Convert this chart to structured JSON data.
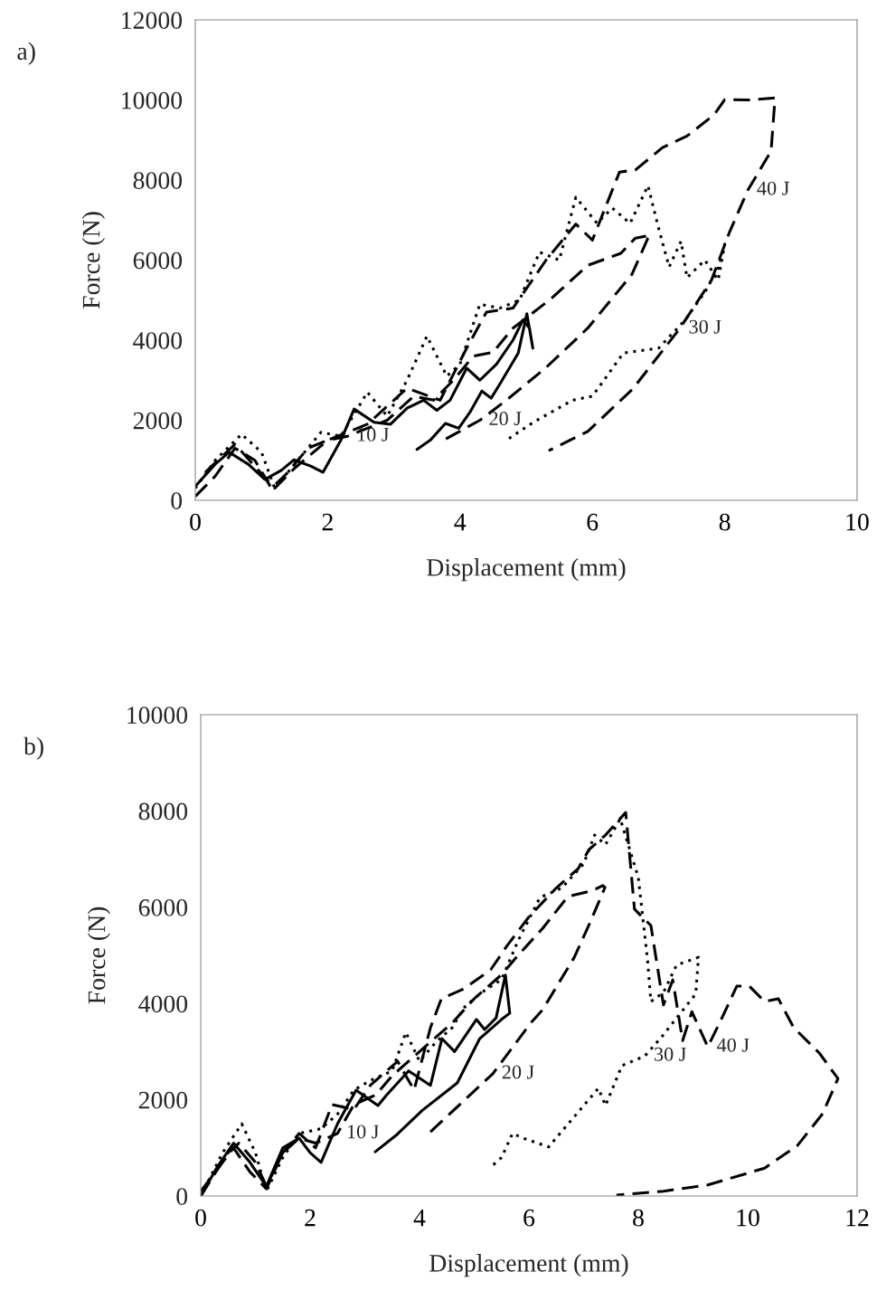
{
  "chart_data": [
    {
      "type": "line",
      "title": "a)",
      "xlabel": "Displacement (mm)",
      "ylabel": "Force (N)",
      "xlim": [
        0,
        10
      ],
      "ylim": [
        0,
        12000
      ],
      "xticks": [
        0,
        2,
        4,
        6,
        8,
        10
      ],
      "yticks": [
        0,
        2000,
        4000,
        6000,
        8000,
        10000,
        12000
      ],
      "grid": false,
      "legend": false,
      "marker": "none",
      "series": [
        {
          "color": "#000000",
          "line_style": "solid",
          "x": [
            0,
            0.3,
            0.51,
            0.8,
            1.05,
            1.3,
            1.49,
            1.75,
            1.93,
            2.2,
            2.4,
            2.7,
            2.95,
            3.2,
            3.45,
            3.65,
            3.85,
            4.1,
            4.3,
            4.55,
            4.8,
            4.95,
            5.05,
            5.1,
            5.01,
            4.88,
            4.6,
            4.47,
            4.33,
            4.15,
            3.98,
            3.78,
            3.55,
            3.35
          ],
          "values": [
            350,
            900,
            1200,
            900,
            520,
            750,
            1010,
            850,
            700,
            1500,
            2280,
            1950,
            1900,
            2300,
            2500,
            2250,
            2500,
            3300,
            3000,
            3400,
            4000,
            4500,
            4300,
            3800,
            4660,
            3680,
            2900,
            2550,
            2730,
            2200,
            1800,
            1920,
            1500,
            1270
          ]
        },
        {
          "color": "#000000",
          "line_style": "dashed",
          "x": [
            0,
            0.3,
            0.6,
            0.9,
            1.15,
            1.4,
            1.7,
            2.0,
            2.3,
            2.6,
            2.9,
            3.3,
            3.6,
            3.9,
            4.2,
            4.5,
            4.8,
            5.38,
            5.93,
            6.43,
            6.65,
            6.88,
            6.84,
            6.6,
            5.93,
            5.29,
            4.7,
            4.3,
            3.75
          ],
          "values": [
            100,
            600,
            1300,
            1000,
            300,
            700,
            1300,
            1500,
            1600,
            1800,
            2000,
            2600,
            2500,
            3000,
            3600,
            3700,
            4300,
            5040,
            5870,
            6170,
            6550,
            6620,
            6550,
            5650,
            4300,
            3300,
            2500,
            2000,
            1500
          ]
        },
        {
          "color": "#000000",
          "line_style": "dotted",
          "x": [
            0,
            0.3,
            0.7,
            1.0,
            1.2,
            1.5,
            1.9,
            2.2,
            2.6,
            2.9,
            3.2,
            3.5,
            3.8,
            4.0,
            4.3,
            4.6,
            4.9,
            5.2,
            5.5,
            5.75,
            6.07,
            6.3,
            6.57,
            6.84,
            7.0,
            7.16,
            7.34,
            7.43,
            7.7,
            7.9,
            8.0,
            7.9,
            7.7,
            7.4,
            7.0,
            6.47,
            6.0,
            5.7,
            5.1,
            4.7
          ],
          "values": [
            300,
            1000,
            1650,
            1200,
            300,
            900,
            1700,
            1600,
            2700,
            2100,
            3000,
            4100,
            3100,
            3400,
            4900,
            4800,
            5000,
            6200,
            6000,
            7570,
            6920,
            7300,
            6920,
            7860,
            6800,
            5830,
            6470,
            5560,
            6000,
            5500,
            6400,
            5800,
            5200,
            4500,
            3800,
            3680,
            2600,
            2500,
            1940,
            1500
          ]
        },
        {
          "color": "#000000",
          "line_style": "dashed",
          "x": [
            0.15,
            0.6,
            1.2,
            1.5,
            2.0,
            2.6,
            3.2,
            3.7,
            4.1,
            4.4,
            4.8,
            5.3,
            5.75,
            6.0,
            6.41,
            6.65,
            7.06,
            7.43,
            7.84,
            8.0,
            8.4,
            8.76,
            8.7,
            8.35,
            8.07,
            7.8,
            7.32,
            6.61,
            5.93,
            5.34
          ],
          "values": [
            700,
            1400,
            300,
            800,
            1500,
            1900,
            2800,
            2500,
            3800,
            4700,
            4800,
            6000,
            6900,
            6500,
            8200,
            8250,
            8810,
            9100,
            9630,
            10010,
            10000,
            10050,
            8720,
            7750,
            6690,
            5500,
            4290,
            2780,
            1720,
            1240
          ]
        }
      ],
      "annotations": [
        {
          "text": "10 J",
          "x": 2.3,
          "y": 1600
        },
        {
          "text": "20 J",
          "x": 4.3,
          "y": 2000
        },
        {
          "text": "30 J",
          "x": 7.32,
          "y": 4290
        },
        {
          "text": "40 J",
          "x": 8.35,
          "y": 7750
        }
      ]
    },
    {
      "type": "line",
      "title": "b)",
      "xlabel": "Displacement (mm)",
      "ylabel": "Force (N)",
      "xlim": [
        0,
        12
      ],
      "ylim": [
        0,
        10000
      ],
      "xticks": [
        0,
        2,
        4,
        6,
        8,
        10,
        12
      ],
      "yticks": [
        0,
        2000,
        4000,
        6000,
        8000,
        10000
      ],
      "grid": false,
      "legend": false,
      "marker": "none",
      "series": [
        {
          "color": "#000000",
          "line_style": "solid",
          "x": [
            0,
            0.3,
            0.6,
            0.9,
            1.2,
            1.5,
            1.8,
            2.0,
            2.2,
            2.5,
            2.84,
            3.24,
            3.4,
            3.8,
            4.2,
            4.41,
            4.64,
            5.04,
            5.19,
            5.4,
            5.57,
            5.65,
            5.5,
            5.1,
            4.69,
            4.05,
            3.59,
            3.19
          ],
          "values": [
            0,
            600,
            1100,
            700,
            200,
            1000,
            1200,
            900,
            700,
            1500,
            2200,
            1880,
            2100,
            2600,
            2300,
            3270,
            3000,
            3670,
            3460,
            3700,
            4590,
            3800,
            3670,
            3270,
            2350,
            1780,
            1280,
            920
          ]
        },
        {
          "color": "#000000",
          "line_style": "dashed",
          "x": [
            0,
            0.6,
            0.9,
            1.2,
            1.5,
            1.8,
            2.1,
            2.5,
            2.8,
            3.2,
            3.5,
            3.9,
            4.3,
            4.6,
            5.0,
            5.5,
            5.8,
            6.25,
            6.71,
            7.17,
            7.35,
            7.39,
            7.12,
            6.83,
            6.25,
            6.03,
            5.34,
            4.15
          ],
          "values": [
            100,
            1000,
            500,
            150,
            900,
            1200,
            1100,
            1300,
            1900,
            2100,
            2500,
            2900,
            3300,
            3600,
            4100,
            4600,
            5000,
            5560,
            6220,
            6350,
            6450,
            6410,
            5690,
            4960,
            3870,
            3590,
            2540,
            1280
          ]
        },
        {
          "color": "#000000",
          "line_style": "dotted",
          "x": [
            0,
            0.4,
            0.75,
            1.0,
            1.2,
            1.5,
            1.8,
            2.2,
            2.5,
            2.8,
            3.1,
            3.5,
            3.75,
            4.0,
            4.3,
            4.6,
            4.8,
            5.1,
            5.5,
            5.8,
            6.2,
            6.6,
            7.0,
            7.2,
            7.4,
            7.67,
            8.0,
            8.17,
            8.23,
            8.46,
            8.7,
            9.1,
            9.05,
            8.43,
            8.12,
            7.7,
            7.4,
            7.27,
            6.83,
            6.36,
            5.9,
            5.7,
            5.5,
            5.3
          ],
          "values": [
            0,
            900,
            1500,
            900,
            100,
            800,
            1300,
            1400,
            1700,
            2200,
            2400,
            2600,
            3400,
            2800,
            3200,
            3500,
            3900,
            4200,
            4500,
            5300,
            6200,
            6400,
            6900,
            7500,
            7300,
            7840,
            6620,
            4890,
            4040,
            4230,
            4800,
            4960,
            4200,
            3310,
            2910,
            2710,
            1880,
            2240,
            1650,
            1020,
            1200,
            1300,
            800,
            600
          ]
        },
        {
          "color": "#000000",
          "line_style": "dashed",
          "x": [
            0,
            0.5,
            0.7,
            1.0,
            1.2,
            1.5,
            1.8,
            2.1,
            2.4,
            2.8,
            3.1,
            3.6,
            3.9,
            4.2,
            4.4,
            4.8,
            5.3,
            5.6,
            6.0,
            6.5,
            6.9,
            7.1,
            7.4,
            7.77,
            7.93,
            8.23,
            8.46,
            8.63,
            8.81,
            8.98,
            9.27,
            9.5,
            9.8,
            10.03,
            10.31,
            10.56,
            10.84,
            11.31,
            11.65,
            11.37,
            10.91,
            10.31,
            9.27,
            8.46,
            7.6
          ],
          "values": [
            0,
            900,
            1100,
            700,
            200,
            900,
            1300,
            1000,
            1900,
            1800,
            2300,
            2800,
            2200,
            3500,
            4100,
            4300,
            4700,
            5200,
            5800,
            6400,
            6800,
            7200,
            7500,
            7970,
            5960,
            5620,
            3970,
            4490,
            3230,
            3830,
            3100,
            3630,
            4360,
            4360,
            4040,
            4100,
            3500,
            2970,
            2440,
            1710,
            1050,
            580,
            230,
            100,
            20
          ]
        }
      ],
      "annotations": [
        {
          "text": "10 J",
          "x": 2.5,
          "y": 1300
        },
        {
          "text": "20 J",
          "x": 5.34,
          "y": 2540
        },
        {
          "text": "30 J",
          "x": 8.12,
          "y": 2910
        },
        {
          "text": "40 J",
          "x": 9.27,
          "y": 3100
        }
      ]
    }
  ]
}
